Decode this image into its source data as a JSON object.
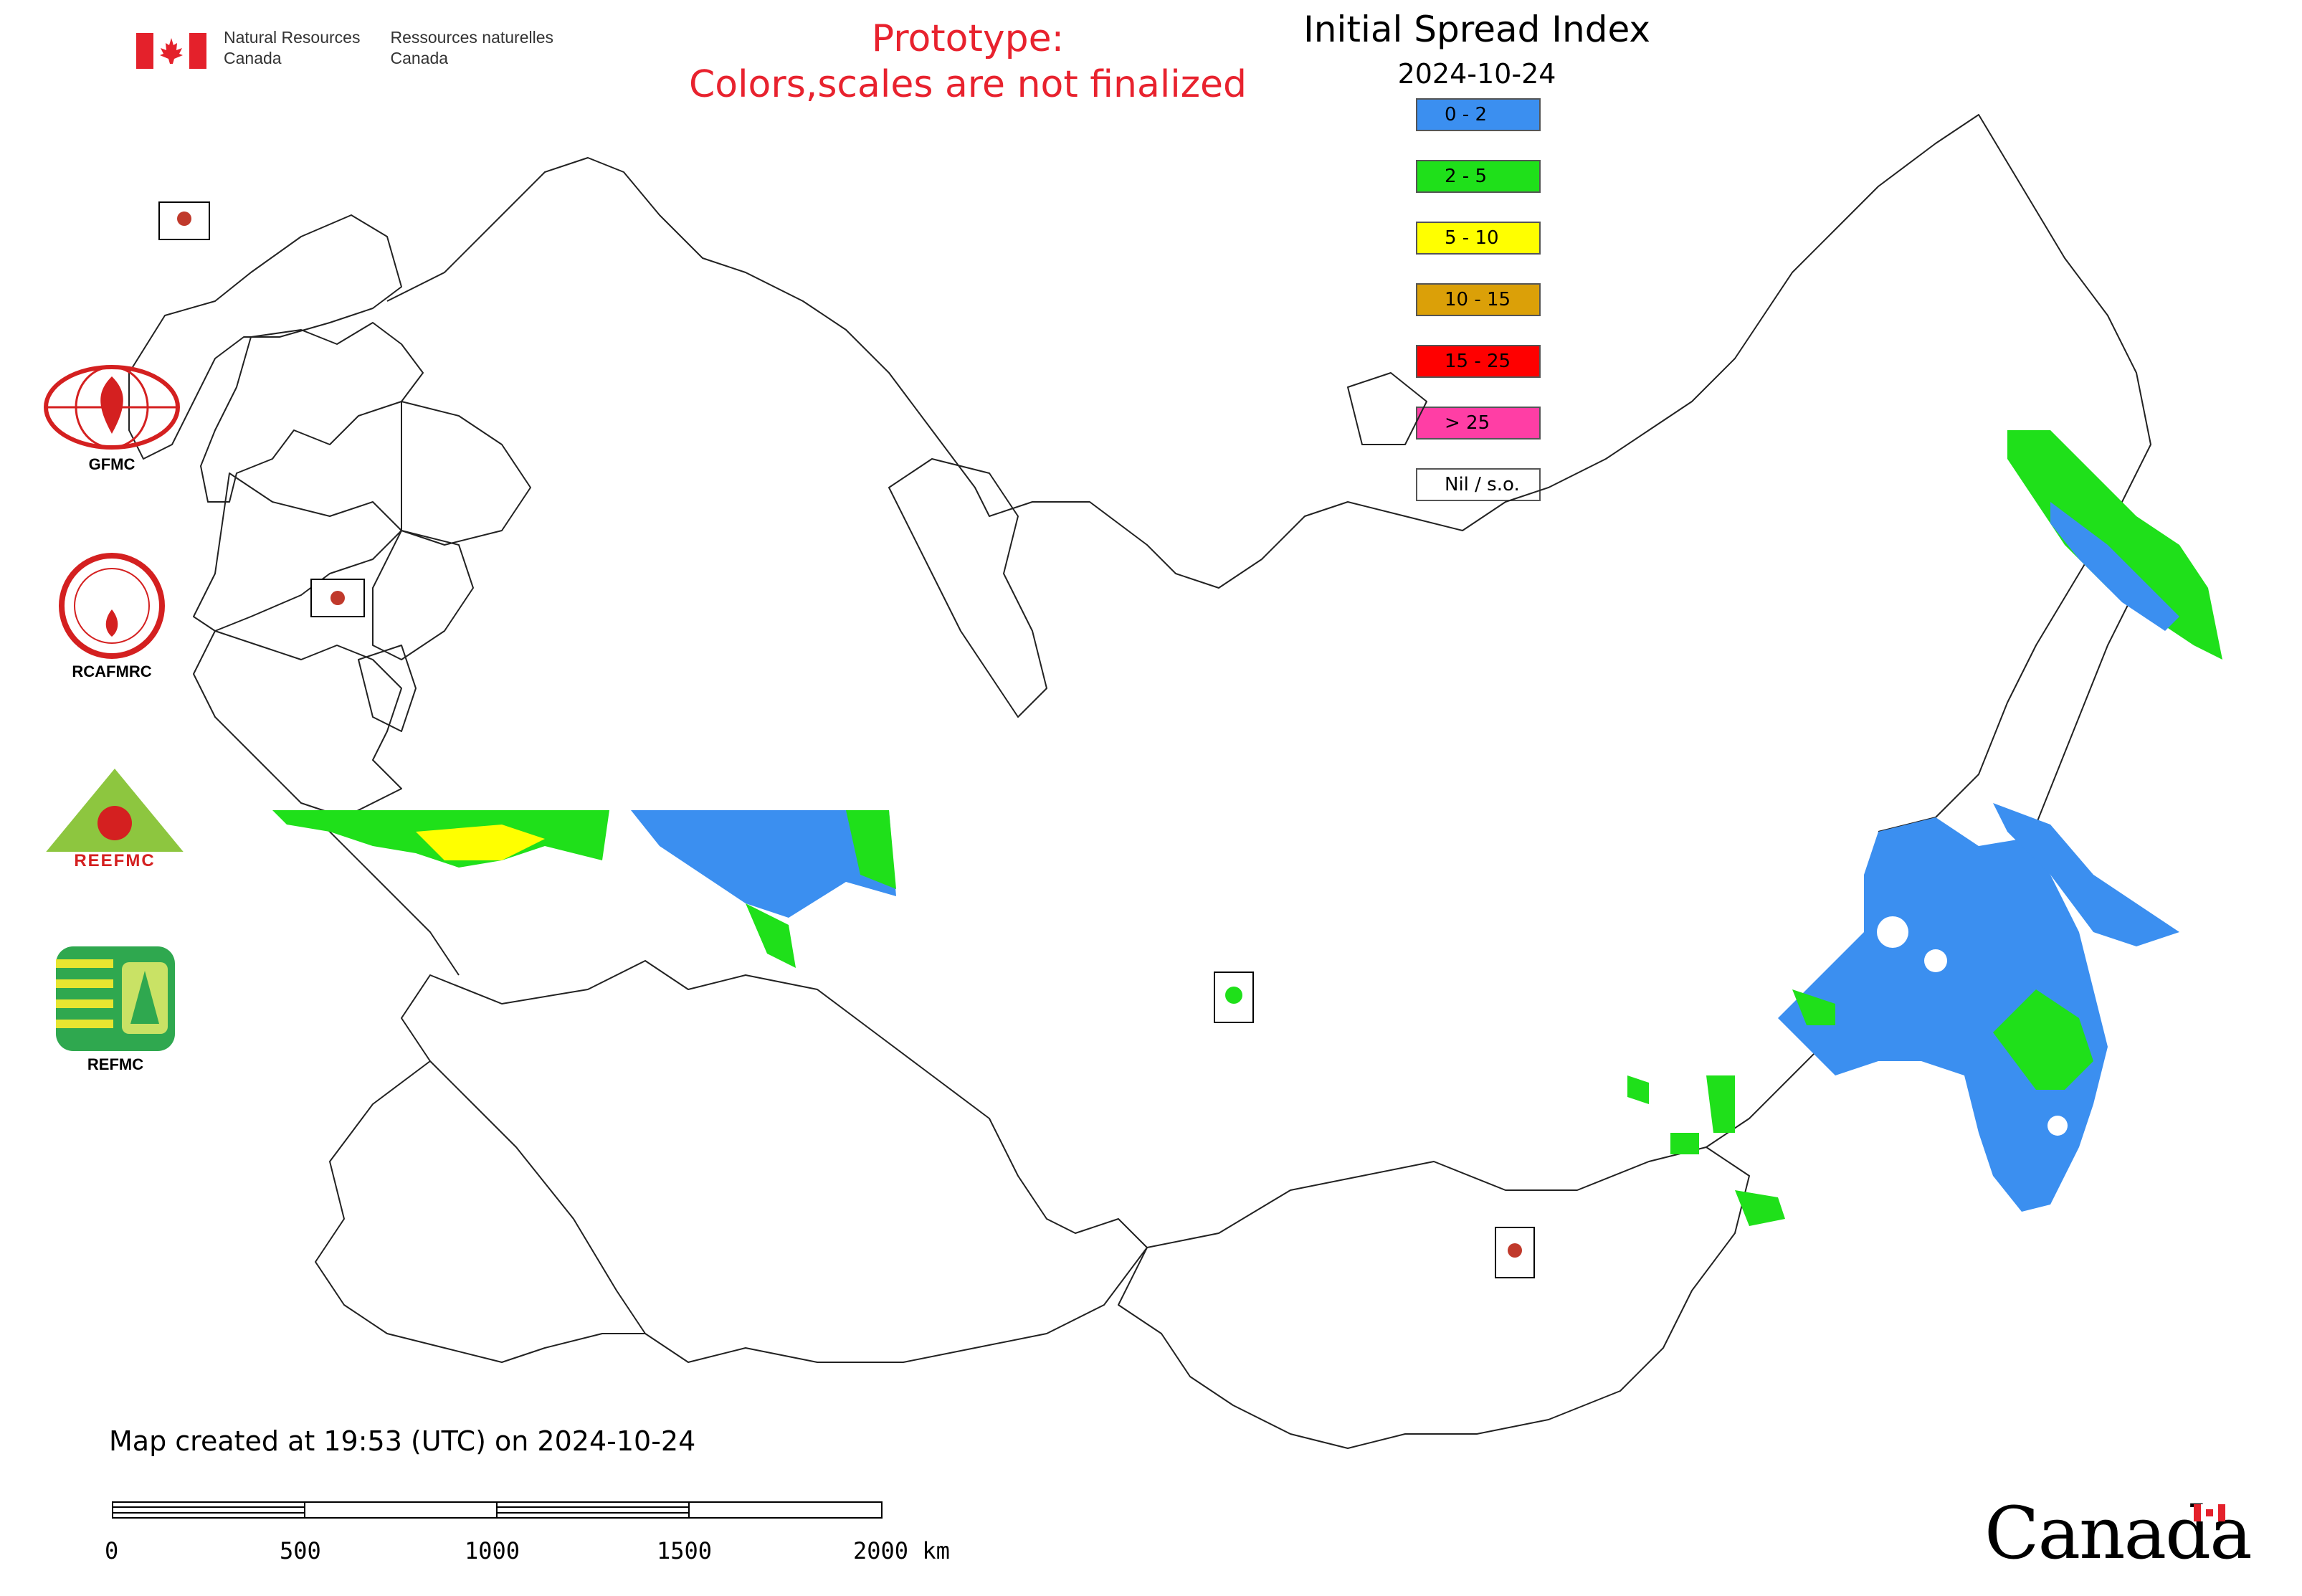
{
  "header": {
    "org_en_line1": "Natural Resources",
    "org_en_line2": "Canada",
    "org_fr_line1": "Ressources naturelles",
    "org_fr_line2": "Canada"
  },
  "notice": {
    "line1": "Prototype:",
    "line2": "Colors,scales are not finalized",
    "color": "#e8222e"
  },
  "map": {
    "title": "Initial Spread Index",
    "date": "2024-10-24",
    "created_text": "Map created at 19:53 (UTC) on 2024-10-24"
  },
  "legend": [
    {
      "label": "0 - 2",
      "color": "#3b8ff0"
    },
    {
      "label": "2 - 5",
      "color": "#1fe01a"
    },
    {
      "label": "5 - 10",
      "color": "#ffff00"
    },
    {
      "label": "10 - 15",
      "color": "#dba008"
    },
    {
      "label": "15 - 25",
      "color": "#ff0000"
    },
    {
      "label": "> 25",
      "color": "#ff3ea5"
    },
    {
      "label": "Nil / s.o.",
      "color": "#ffffff"
    }
  ],
  "logos": {
    "gfmc": "GFMC",
    "rcafmrc": "RCAFMRC",
    "reefmc": "REEFMC",
    "refmc": "REFMC"
  },
  "scale": {
    "ticks": [
      "0",
      "500",
      "1000",
      "1500",
      "2000 km"
    ]
  },
  "wordmark": "Canada"
}
